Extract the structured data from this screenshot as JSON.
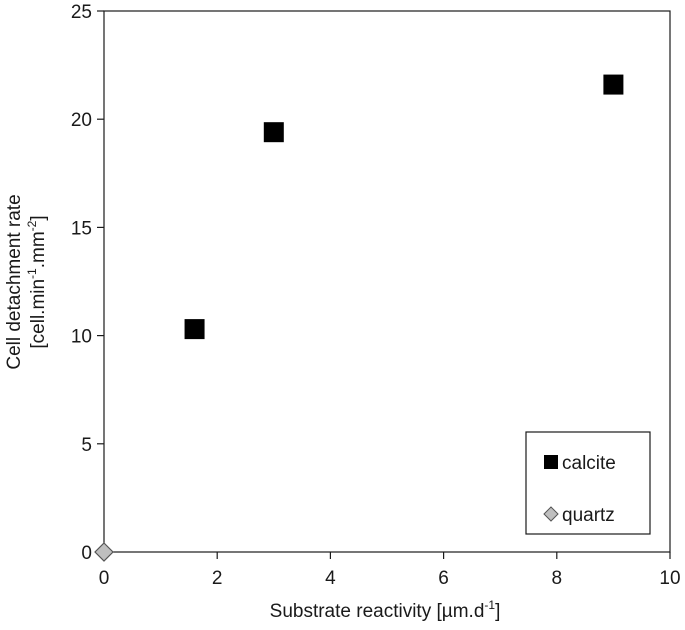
{
  "chart_data": {
    "type": "scatter",
    "title": "",
    "xlabel_main": "Substrate reactivity [µm.d",
    "xlabel_sup": "-1",
    "ylabel_line1": "Cell detachment rate",
    "ylabel_line2_parts": [
      "[cell.min",
      "-1",
      ".mm",
      "-2",
      "]"
    ],
    "xlim": [
      0,
      10
    ],
    "ylim": [
      0,
      25
    ],
    "xticks": [
      0,
      2,
      4,
      6,
      8,
      10
    ],
    "yticks": [
      0,
      5,
      10,
      15,
      20,
      25
    ],
    "grid": false,
    "legend_position": "bottom-right",
    "series": [
      {
        "name": "calcite",
        "marker": "square",
        "color": "#000000",
        "points": [
          {
            "x": 1.6,
            "y": 10.3
          },
          {
            "x": 3.0,
            "y": 19.4
          },
          {
            "x": 9.0,
            "y": 21.6
          }
        ]
      },
      {
        "name": "quartz",
        "marker": "diamond",
        "color": "#bfbfbf",
        "points": [
          {
            "x": 0.0,
            "y": 0.0
          }
        ]
      }
    ]
  }
}
